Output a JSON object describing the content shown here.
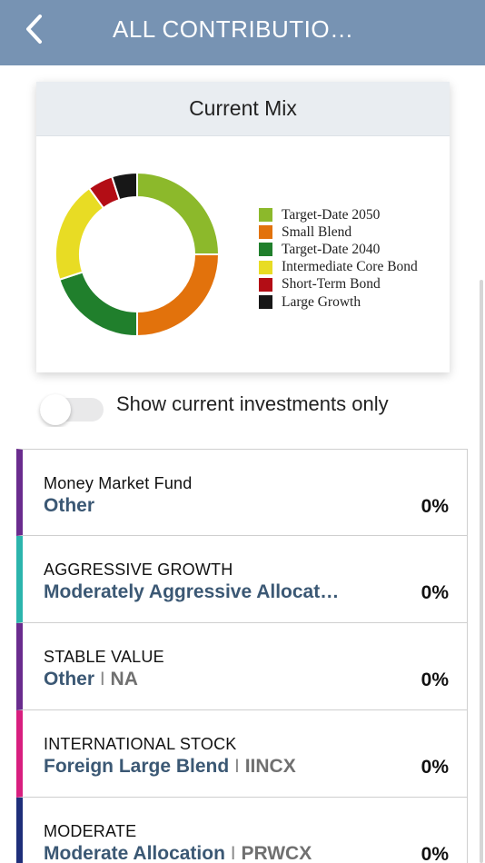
{
  "header": {
    "title": "ALL CONTRIBUTIO…",
    "back_icon": "chevron-left-icon"
  },
  "chart_card": {
    "title": "Current Mix"
  },
  "chart_data": {
    "type": "pie",
    "donut": true,
    "categories": [
      "Target-Date 2050",
      "Small Blend",
      "Target-Date 2040",
      "Intermediate Core Bond",
      "Short-Term Bond",
      "Large Growth"
    ],
    "values": [
      25,
      25,
      20,
      20,
      5,
      5
    ],
    "colors": [
      "#8cb92b",
      "#e2720c",
      "#207f2c",
      "#e8dc24",
      "#b30d15",
      "#171717"
    ],
    "legend_position": "right"
  },
  "toggle": {
    "label": "Show current investments only",
    "on": false
  },
  "funds": [
    {
      "category": "Money Market Fund",
      "type": "Other",
      "ticker": "",
      "pct": "0%",
      "color": "#6a2c8e"
    },
    {
      "category": "AGGRESSIVE GROWTH",
      "type": "Moderately Aggressive Allocat…",
      "ticker": "",
      "pct": "0%",
      "color": "#2cb5ad"
    },
    {
      "category": "STABLE VALUE",
      "type": "Other",
      "ticker": "NA",
      "pct": "0%",
      "color": "#6a2c8e"
    },
    {
      "category": "INTERNATIONAL STOCK",
      "type": "Foreign Large Blend",
      "ticker": "IINCX",
      "pct": "0%",
      "color": "#d81f7f"
    },
    {
      "category": "MODERATE",
      "type": "Moderate Allocation",
      "ticker": "PRWCX",
      "pct": "0%",
      "color": "#1f2f7a"
    }
  ],
  "separator": "I"
}
